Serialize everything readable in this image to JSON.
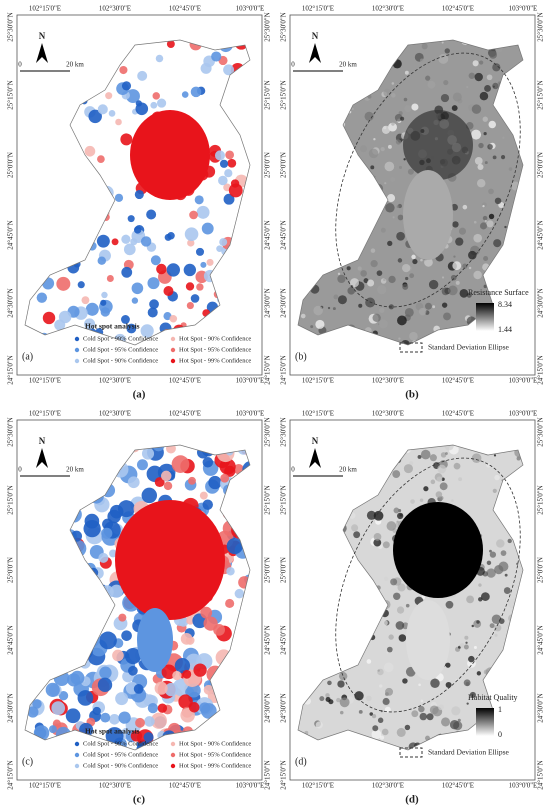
{
  "longitude_labels": [
    "102°15'0\"E",
    "102°30'0\"E",
    "102°45'0\"E",
    "103°0'0\"E"
  ],
  "latitude_labels": [
    "25°30'0\"N",
    "25°15'0\"N",
    "25°0'0\"N",
    "24°45'0\"N",
    "24°30'0\"N",
    "24°15'0\"N"
  ],
  "north_label": "N",
  "scale": {
    "start": "0",
    "end": "20 km"
  },
  "panels": [
    {
      "label": "(a)",
      "caption": "(a)",
      "kind": "hotspot",
      "legend": {
        "title": "Hot spot analysis",
        "items": [
          {
            "text": "Cold Spot - 99% Confidence",
            "color": "#1f5fc4"
          },
          {
            "text": "Cold Spot - 95% Confidence",
            "color": "#5d95e0"
          },
          {
            "text": "Cold Spot - 90% Confidence",
            "color": "#aac7ee"
          },
          {
            "text": "Hot Spot - 90% Confidence",
            "color": "#f5b7b1"
          },
          {
            "text": "Hot Spot - 95% Confidence",
            "color": "#ee6d6b"
          },
          {
            "text": "Hot Spot - 99% Confidence",
            "color": "#e8141b"
          }
        ]
      }
    },
    {
      "label": "(b)",
      "caption": "(b)",
      "kind": "gray",
      "legend": {
        "title": "Resistance Surface",
        "max": "8.34",
        "min": "1.44",
        "ellipse": "Standard Deviation Ellipse"
      }
    },
    {
      "label": "(c)",
      "caption": "(c)",
      "kind": "hotspot",
      "legend": {
        "title": "Hot spot analysis",
        "items": [
          {
            "text": "Cold Spot - 99% Confidence",
            "color": "#1f5fc4"
          },
          {
            "text": "Cold Spot - 95% Confidence",
            "color": "#5d95e0"
          },
          {
            "text": "Cold Spot - 90% Confidence",
            "color": "#aac7ee"
          },
          {
            "text": "Hot Spot - 90% Confidence",
            "color": "#f5b7b1"
          },
          {
            "text": "Hot Spot - 95% Confidence",
            "color": "#ee6d6b"
          },
          {
            "text": "Hot Spot - 99% Confidence",
            "color": "#e8141b"
          }
        ]
      }
    },
    {
      "label": "(d)",
      "caption": "(d)",
      "kind": "gray",
      "legend": {
        "title": "Habitat Quality",
        "max": "1",
        "min": "0",
        "ellipse": "Standard Deviation Ellipse"
      }
    }
  ]
}
